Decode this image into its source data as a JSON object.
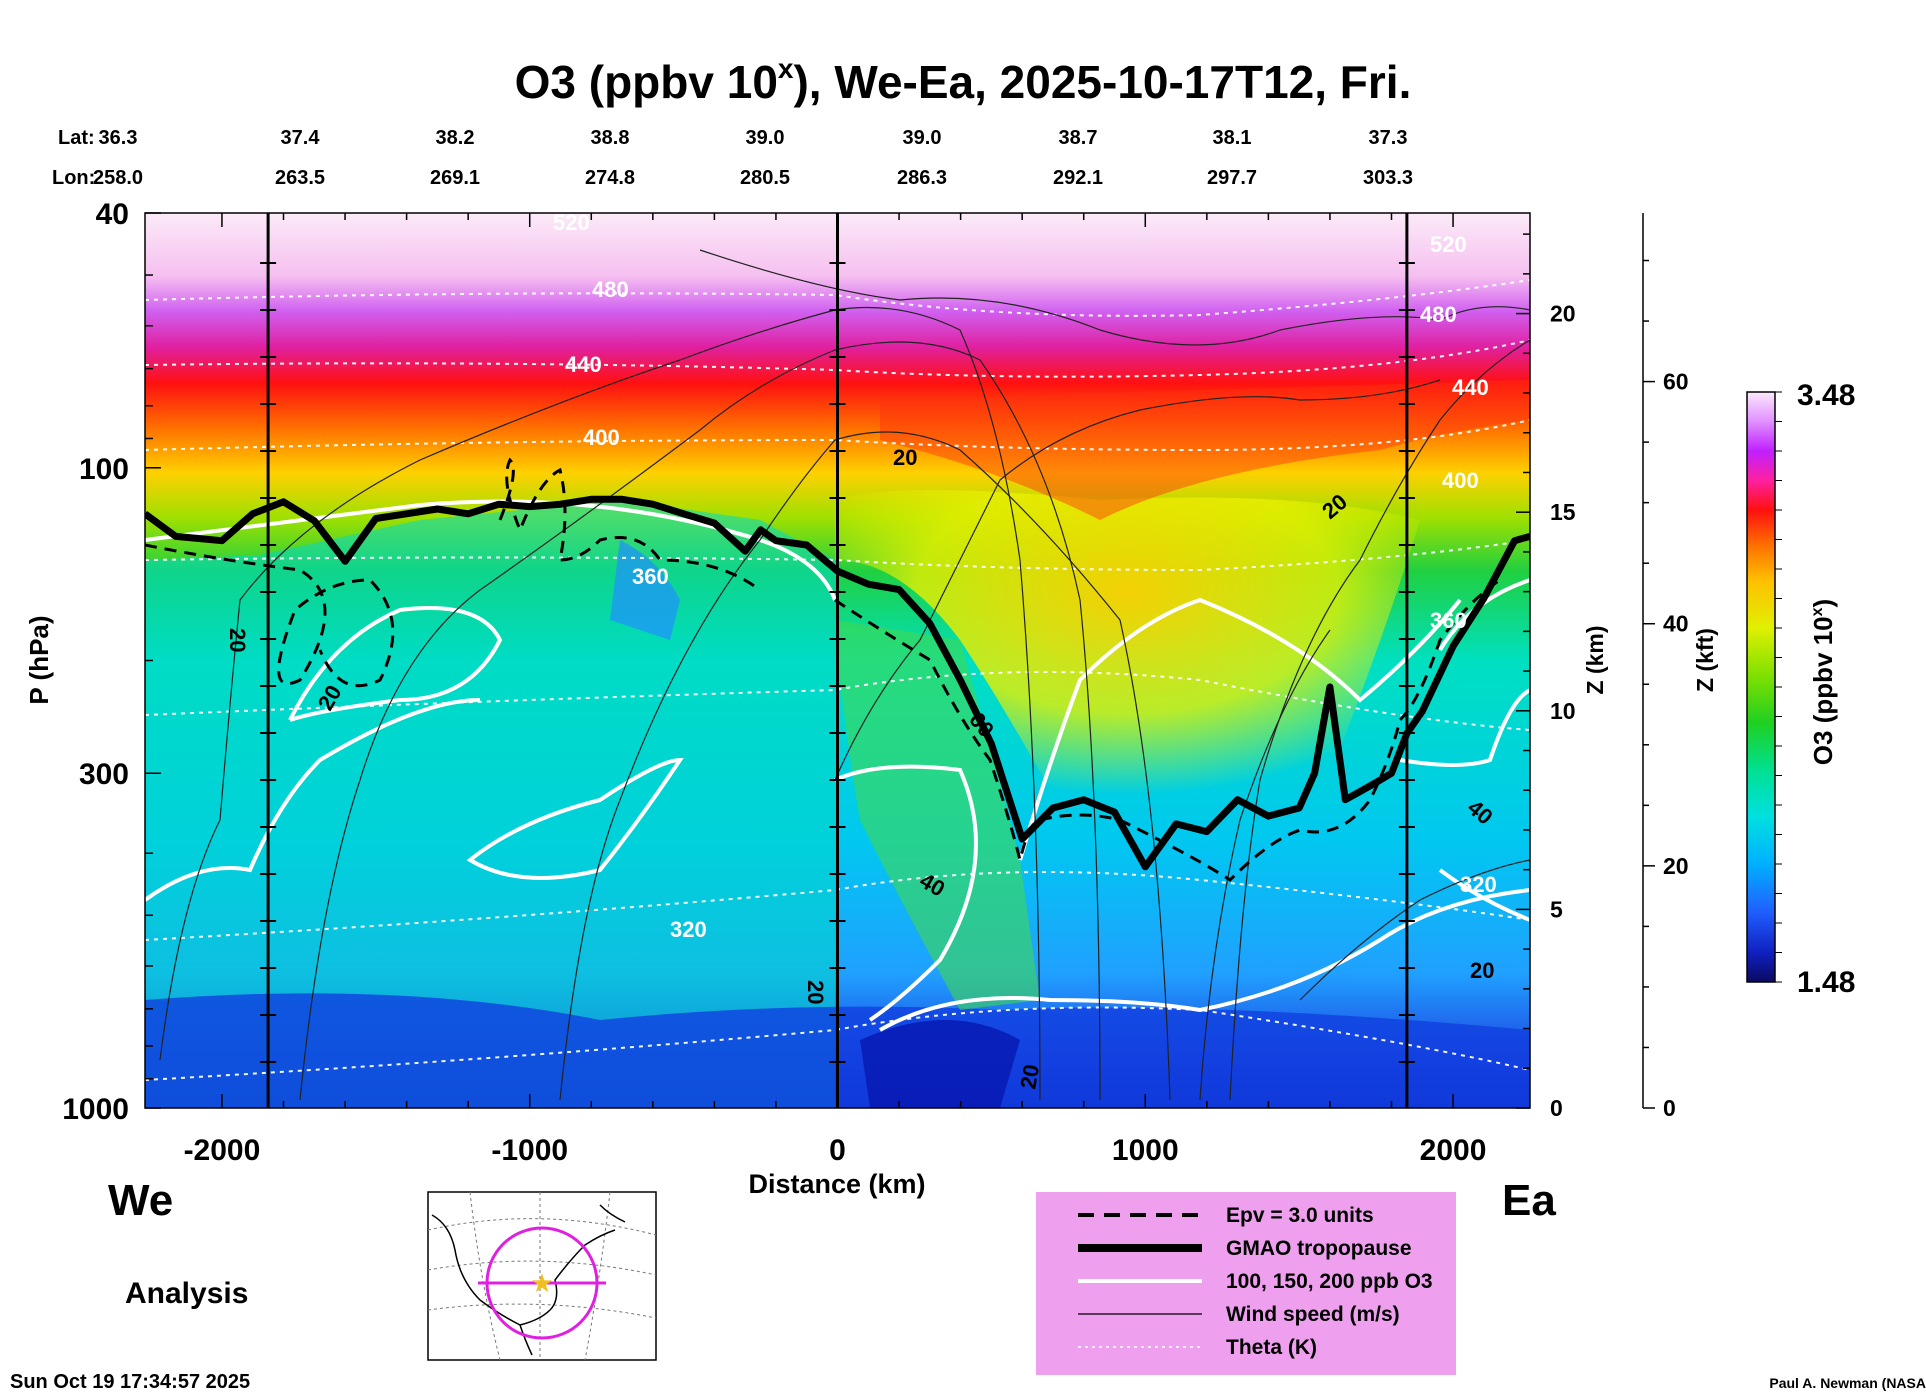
{
  "title": "O3 (ppbv 10",
  "title_sup": "x",
  "title_suffix": "), We-Ea, 2025-10-17T12, Fri.",
  "lat_label": "Lat:",
  "lon_label": "Lon:",
  "lats": [
    "36.3",
    "37.4",
    "38.2",
    "38.8",
    "39.0",
    "39.0",
    "38.7",
    "38.1",
    "37.3"
  ],
  "lons": [
    "258.0",
    "263.5",
    "269.1",
    "274.8",
    "280.5",
    "286.3",
    "292.1",
    "297.7",
    "303.3"
  ],
  "y_axis_label": "P (hPa)",
  "x_axis_label": "Distance (km)",
  "z_km_label": "Z (km)",
  "z_kft_label": "Z (kft)",
  "colorbar_label": "O3 (ppbv 10",
  "colorbar_label_sup": "x",
  "colorbar_label_suffix": ")",
  "colorbar_max": "3.48",
  "colorbar_min": "1.48",
  "west_label": "We",
  "east_label": "Ea",
  "analysis_label": "Analysis",
  "timestamp": "Sun Oct 19 17:34:57 2025",
  "credit": "Paul A. Newman (NASA",
  "legend": [
    {
      "label": "Epv = 3.0 units",
      "style": "dashed"
    },
    {
      "label": "GMAO tropopause",
      "style": "thick"
    },
    {
      "label": "100, 150, 200 ppb O3",
      "style": "white"
    },
    {
      "label": "Wind speed (m/s)",
      "style": "thin"
    },
    {
      "label": "Theta (K)",
      "style": "dotted"
    }
  ],
  "colors": {
    "legend_bg": "#eea0ee",
    "map_marker": "#e020e0",
    "star": "#f0c020"
  },
  "chart_data": {
    "type": "heatmap",
    "x_range": [
      -2250,
      2250
    ],
    "x_ticks": [
      -2000,
      -1000,
      0,
      1000,
      2000
    ],
    "x_tick_labels": [
      "-2000",
      "-1000",
      "0",
      "1000",
      "2000"
    ],
    "y_scale": "log",
    "y_range_hpa": [
      1000,
      40
    ],
    "y_ticks_hpa": [
      40,
      100,
      300,
      1000
    ],
    "y_tick_labels": [
      "40",
      "100",
      "300",
      "1000"
    ],
    "z_km_ticks": [
      0,
      5,
      10,
      15,
      20
    ],
    "z_kft_ticks": [
      0,
      20,
      40,
      60
    ],
    "colorbar_range": [
      1.48,
      3.48
    ],
    "vertical_markers_km": [
      -1850,
      0,
      1850
    ],
    "tropopause": {
      "x": [
        -2250,
        -2150,
        -2000,
        -1900,
        -1800,
        -1700,
        -1600,
        -1500,
        -1400,
        -1300,
        -1200,
        -1100,
        -1000,
        -900,
        -800,
        -700,
        -600,
        -500,
        -400,
        -300,
        -250,
        -200,
        -100,
        0,
        100,
        200,
        300,
        400,
        500,
        600,
        700,
        800,
        900,
        1000,
        1100,
        1200,
        1300,
        1400,
        1500,
        1550,
        1600,
        1650,
        1700,
        1750,
        1800,
        1850,
        1900,
        2000,
        2100,
        2200,
        2250
      ],
      "p": [
        118,
        128,
        130,
        118,
        113,
        121,
        140,
        120,
        118,
        116,
        118,
        114,
        115,
        114,
        112,
        112,
        114,
        118,
        122,
        135,
        125,
        130,
        132,
        145,
        152,
        155,
        175,
        215,
        270,
        380,
        340,
        330,
        345,
        420,
        360,
        370,
        330,
        350,
        340,
        300,
        220,
        330,
        320,
        310,
        300,
        260,
        240,
        190,
        160,
        130,
        128
      ]
    },
    "wind_labels": [
      "20",
      "20",
      "20",
      "20",
      "40",
      "40",
      "60",
      "20",
      "20",
      "20",
      "20"
    ],
    "theta_labels": [
      "520",
      "480",
      "440",
      "400",
      "360",
      "320",
      "360",
      "320",
      "400",
      "440",
      "480",
      "520"
    ]
  }
}
